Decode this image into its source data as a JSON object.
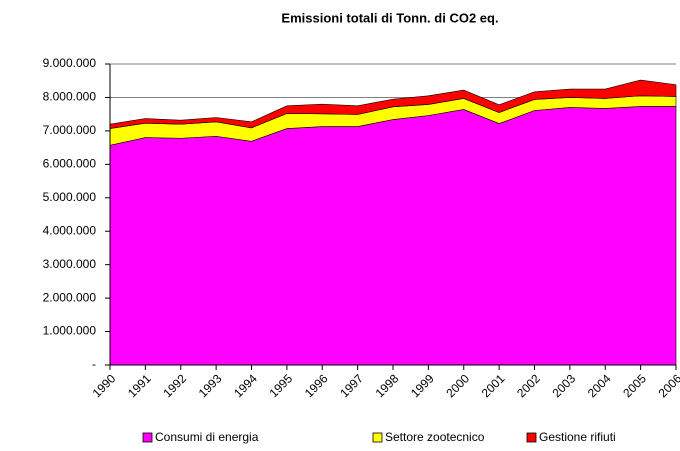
{
  "chart_data": {
    "type": "stacked_area",
    "title": "Emissioni totali di Tonn. di CO2 eq.",
    "categories": [
      "1990",
      "1991",
      "1992",
      "1993",
      "1994",
      "1995",
      "1996",
      "1997",
      "1998",
      "1999",
      "2000",
      "2001",
      "2002",
      "2003",
      "2004",
      "2005",
      "2006"
    ],
    "series": [
      {
        "name": "Consumi di energia",
        "color": "#ff00ff",
        "values": [
          6570000,
          6800000,
          6780000,
          6840000,
          6690000,
          7070000,
          7130000,
          7130000,
          7340000,
          7460000,
          7640000,
          7220000,
          7610000,
          7700000,
          7670000,
          7730000,
          7730000
        ]
      },
      {
        "name": "Settore zootecnico",
        "color": "#ffff00",
        "values": [
          500000,
          430000,
          420000,
          430000,
          400000,
          450000,
          380000,
          360000,
          380000,
          330000,
          330000,
          330000,
          330000,
          300000,
          300000,
          320000,
          300000
        ]
      },
      {
        "name": "Gestione rifiuti",
        "color": "#ff0000",
        "values": [
          130000,
          140000,
          120000,
          130000,
          180000,
          230000,
          290000,
          260000,
          230000,
          260000,
          250000,
          230000,
          230000,
          250000,
          280000,
          470000,
          350000
        ]
      }
    ],
    "ylim": [
      0,
      9000000
    ],
    "yticks": [
      {
        "value": 0,
        "label": "-"
      },
      {
        "value": 1000000,
        "label": "1.000.000"
      },
      {
        "value": 2000000,
        "label": "2.000.000"
      },
      {
        "value": 3000000,
        "label": "3.000.000"
      },
      {
        "value": 4000000,
        "label": "4.000.000"
      },
      {
        "value": 5000000,
        "label": "5.000.000"
      },
      {
        "value": 6000000,
        "label": "6.000.000"
      },
      {
        "value": 7000000,
        "label": "7.000.000"
      },
      {
        "value": 8000000,
        "label": "8.000.000"
      },
      {
        "value": 9000000,
        "label": "9.000.000"
      }
    ],
    "grid": true
  }
}
